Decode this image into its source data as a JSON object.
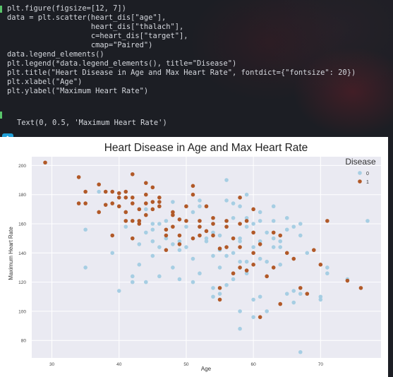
{
  "code": {
    "lines": [
      "plt.figure(figsize=[12, 7])",
      "data = plt.scatter(heart_dis[\"age\"],",
      "                   heart_dis[\"thalach\"],",
      "                   c=heart_dis[\"target\"],",
      "                   cmap=\"Paired\")",
      "data.legend_elements()",
      "plt.legend(*data.legend_elements(), title=\"Disease\")",
      "plt.title(\"Heart Disease in Age and Max Heart Rate\", fontdict={\"fontsize\": 20})",
      "plt.xlabel(\"Age\")",
      "plt.ylabel(\"Maximum Heart Rate\")"
    ],
    "output": "Text(0, 0.5, 'Maximum Heart Rate')"
  },
  "colors": {
    "class0": "#a6cee3",
    "class1": "#b15928",
    "plot_bg": "#eaeaf2",
    "grid": "#ffffff"
  },
  "chart_data": {
    "type": "scatter",
    "title": "Heart Disease in Age and Max Heart Rate",
    "xlabel": "Age",
    "ylabel": "Maximum Heart Rate",
    "xlim": [
      27,
      79
    ],
    "ylim": [
      68,
      206
    ],
    "xticks": [
      30,
      40,
      50,
      60,
      70
    ],
    "yticks": [
      80,
      100,
      120,
      140,
      160,
      180,
      200
    ],
    "grid": true,
    "legend": {
      "title": "Disease",
      "placement": "top-right",
      "entries": [
        "0",
        "1"
      ]
    },
    "series": [
      {
        "name": "0",
        "points": [
          [
            35,
            130
          ],
          [
            35,
            156
          ],
          [
            37,
            182
          ],
          [
            39,
            140
          ],
          [
            40,
            114
          ],
          [
            41,
            158
          ],
          [
            41,
            168
          ],
          [
            42,
            120
          ],
          [
            42,
            124
          ],
          [
            43,
            146
          ],
          [
            43,
            162
          ],
          [
            43,
            132
          ],
          [
            44,
            120
          ],
          [
            44,
            170
          ],
          [
            44,
            154
          ],
          [
            45,
            148
          ],
          [
            45,
            160
          ],
          [
            45,
            138
          ],
          [
            45,
            156
          ],
          [
            46,
            144
          ],
          [
            46,
            160
          ],
          [
            46,
            124
          ],
          [
            47,
            150
          ],
          [
            47,
            162
          ],
          [
            48,
            130
          ],
          [
            48,
            146
          ],
          [
            48,
            175
          ],
          [
            49,
            148
          ],
          [
            49,
            122
          ],
          [
            49,
            142
          ],
          [
            50,
            158
          ],
          [
            50,
            144
          ],
          [
            51,
            136
          ],
          [
            51,
            120
          ],
          [
            51,
            168
          ],
          [
            52,
            126
          ],
          [
            52,
            172
          ],
          [
            52,
            176
          ],
          [
            53,
            148
          ],
          [
            53,
            150
          ],
          [
            54,
            138
          ],
          [
            54,
            154
          ],
          [
            54,
            110
          ],
          [
            54,
            116
          ],
          [
            54,
            160
          ],
          [
            55,
            112
          ],
          [
            55,
            130
          ],
          [
            55,
            142
          ],
          [
            55,
            152
          ],
          [
            56,
            118
          ],
          [
            56,
            138
          ],
          [
            56,
            162
          ],
          [
            56,
            176
          ],
          [
            56,
            190
          ],
          [
            57,
            140
          ],
          [
            57,
            122
          ],
          [
            57,
            164
          ],
          [
            57,
            174
          ],
          [
            58,
            100
          ],
          [
            58,
            134
          ],
          [
            58,
            148
          ],
          [
            58,
            150
          ],
          [
            58,
            172
          ],
          [
            58,
            88
          ],
          [
            59,
            126
          ],
          [
            59,
            134
          ],
          [
            59,
            158
          ],
          [
            59,
            164
          ],
          [
            59,
            180
          ],
          [
            60,
            108
          ],
          [
            60,
            144
          ],
          [
            60,
            160
          ],
          [
            60,
            96
          ],
          [
            61,
            110
          ],
          [
            61,
            136
          ],
          [
            61,
            148
          ],
          [
            61,
            162
          ],
          [
            61,
            168
          ],
          [
            62,
            100
          ],
          [
            62,
            134
          ],
          [
            62,
            154
          ],
          [
            63,
            144
          ],
          [
            63,
            150
          ],
          [
            63,
            162
          ],
          [
            63,
            172
          ],
          [
            64,
            132
          ],
          [
            64,
            148
          ],
          [
            64,
            144
          ],
          [
            65,
            112
          ],
          [
            65,
            156
          ],
          [
            65,
            164
          ],
          [
            66,
            106
          ],
          [
            66,
            114
          ],
          [
            66,
            158
          ],
          [
            67,
            72
          ],
          [
            67,
            112
          ],
          [
            67,
            152
          ],
          [
            67,
            160
          ],
          [
            68,
            140
          ],
          [
            70,
            108
          ],
          [
            70,
            110
          ],
          [
            71,
            126
          ],
          [
            71,
            130
          ],
          [
            74,
            122
          ],
          [
            77,
            162
          ]
        ]
      },
      {
        "name": "1",
        "points": [
          [
            29,
            202
          ],
          [
            34,
            192
          ],
          [
            34,
            174
          ],
          [
            35,
            174
          ],
          [
            35,
            182
          ],
          [
            37,
            168
          ],
          [
            37,
            187
          ],
          [
            38,
            173
          ],
          [
            38,
            182
          ],
          [
            39,
            174
          ],
          [
            39,
            182
          ],
          [
            39,
            152
          ],
          [
            40,
            178
          ],
          [
            40,
            172
          ],
          [
            40,
            181
          ],
          [
            41,
            178
          ],
          [
            41,
            182
          ],
          [
            41,
            162
          ],
          [
            41,
            168
          ],
          [
            42,
            194
          ],
          [
            42,
            178
          ],
          [
            42,
            174
          ],
          [
            42,
            162
          ],
          [
            42,
            150
          ],
          [
            43,
            162
          ],
          [
            43,
            170
          ],
          [
            43,
            160
          ],
          [
            44,
            188
          ],
          [
            44,
            180
          ],
          [
            44,
            174
          ],
          [
            44,
            166
          ],
          [
            45,
            185
          ],
          [
            45,
            175
          ],
          [
            45,
            170
          ],
          [
            46,
            175
          ],
          [
            46,
            178
          ],
          [
            46,
            172
          ],
          [
            47,
            142
          ],
          [
            47,
            156
          ],
          [
            47,
            152
          ],
          [
            48,
            166
          ],
          [
            48,
            158
          ],
          [
            48,
            168
          ],
          [
            49,
            163
          ],
          [
            49,
            152
          ],
          [
            49,
            146
          ],
          [
            50,
            162
          ],
          [
            50,
            172
          ],
          [
            51,
            180
          ],
          [
            51,
            186
          ],
          [
            51,
            150
          ],
          [
            52,
            158
          ],
          [
            52,
            162
          ],
          [
            52,
            152
          ],
          [
            53,
            155
          ],
          [
            53,
            172
          ],
          [
            54,
            160
          ],
          [
            54,
            164
          ],
          [
            54,
            152
          ],
          [
            55,
            143
          ],
          [
            55,
            116
          ],
          [
            55,
            108
          ],
          [
            56,
            144
          ],
          [
            56,
            158
          ],
          [
            56,
            162
          ],
          [
            57,
            126
          ],
          [
            57,
            150
          ],
          [
            58,
            130
          ],
          [
            58,
            144
          ],
          [
            58,
            160
          ],
          [
            58,
            178
          ],
          [
            59,
            128
          ],
          [
            59,
            162
          ],
          [
            60,
            140
          ],
          [
            60,
            132
          ],
          [
            60,
            170
          ],
          [
            60,
            154
          ],
          [
            61,
            96
          ],
          [
            61,
            146
          ],
          [
            62,
            124
          ],
          [
            63,
            130
          ],
          [
            63,
            154
          ],
          [
            64,
            105
          ],
          [
            64,
            152
          ],
          [
            65,
            140
          ],
          [
            66,
            136
          ],
          [
            67,
            116
          ],
          [
            68,
            112
          ],
          [
            69,
            142
          ],
          [
            70,
            132
          ],
          [
            71,
            162
          ],
          [
            74,
            121
          ],
          [
            76,
            116
          ]
        ]
      }
    ]
  }
}
